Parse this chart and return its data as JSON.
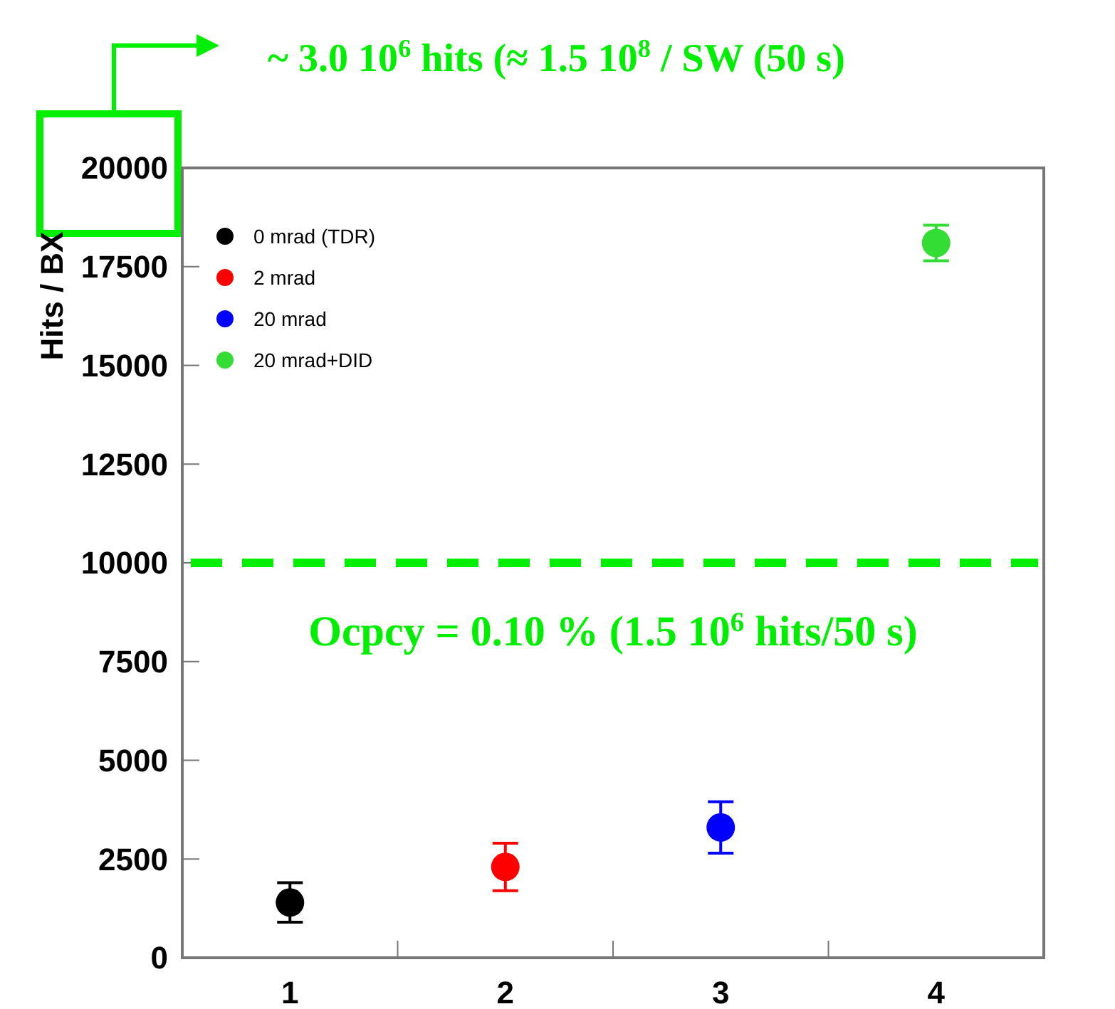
{
  "chart_data": {
    "type": "scatter",
    "title": "~ 3.0 10$^{6}$ hits (≈ 1.5 10$^{8}$     / SW (50   s)",
    "ylabel": "Hits / BX",
    "xlim": [
      0.5,
      4.5
    ],
    "xticks": [
      1,
      2,
      3,
      4
    ],
    "ylim": [
      0,
      20000
    ],
    "yticks": [
      0,
      2500,
      5000,
      7500,
      10000,
      12500,
      15000,
      17500,
      20000
    ],
    "series": [
      {
        "name": "0 mrad (TDR)",
        "color": "#000000",
        "x": [
          1
        ],
        "values": [
          1400
        ],
        "errors": [
          500
        ]
      },
      {
        "name": "2 mrad",
        "color": "#ff0000",
        "x": [
          2
        ],
        "values": [
          2300
        ],
        "errors": [
          600
        ]
      },
      {
        "name": "20 mrad",
        "color": "#0000ff",
        "x": [
          3
        ],
        "values": [
          3300
        ],
        "errors": [
          650
        ]
      },
      {
        "name": "20 mrad+DID",
        "color": "#33dd33",
        "x": [
          4
        ],
        "values": [
          18100
        ],
        "errors": [
          450
        ]
      }
    ],
    "ref_lines": [
      {
        "axis": "y",
        "value": 10000,
        "color": "#00ee00",
        "line_style": "dashed"
      }
    ],
    "annotations": [
      "Ocpcy = 0.10 % (1.5 10$^{6}$ hits/50 s)"
    ],
    "marker": "circle",
    "legend": "top left",
    "grid": false
  }
}
